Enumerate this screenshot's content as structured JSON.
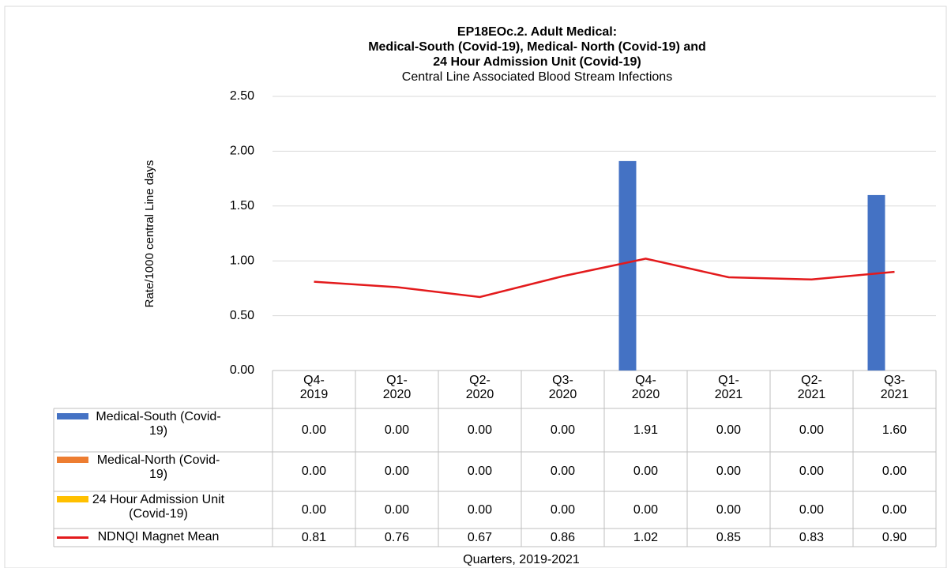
{
  "chart_data": {
    "type": "bar",
    "title": [
      "EP18EOc.2. Adult Medical:",
      "Medical-South (Covid-19), Medical- North (Covid-19) and",
      "24 Hour Admission Unit (Covid-19)"
    ],
    "subtitle": "Central Line Associated Blood Stream Infections",
    "y_label": "Rate/1000 central Line days",
    "x_label": "Quarters, 2019-2021",
    "categories": [
      "Q4-2019",
      "Q1-2020",
      "Q2-2020",
      "Q3-2020",
      "Q4-2020",
      "Q1-2021",
      "Q2-2021",
      "Q3-2021"
    ],
    "series": [
      {
        "name": "Medical-South (Covid-19)",
        "type": "bar",
        "color": "#4472c4",
        "values": [
          0,
          0,
          0,
          0,
          1.91,
          0,
          0,
          1.6
        ],
        "value_labels": [
          "0.00",
          "0.00",
          "0.00",
          "0.00",
          "1.91",
          "0.00",
          "0.00",
          "1.60"
        ]
      },
      {
        "name": "Medical-North (Covid-19)",
        "type": "bar",
        "color": "#ed7d31",
        "values": [
          0,
          0,
          0,
          0,
          0,
          0,
          0,
          0
        ],
        "value_labels": [
          "0.00",
          "0.00",
          "0.00",
          "0.00",
          "0.00",
          "0.00",
          "0.00",
          "0.00"
        ]
      },
      {
        "name": "24 Hour Admission Unit (Covid-19)",
        "type": "bar",
        "color": "#ffc000",
        "values": [
          0,
          0,
          0,
          0,
          0,
          0,
          0,
          0
        ],
        "value_labels": [
          "0.00",
          "0.00",
          "0.00",
          "0.00",
          "0.00",
          "0.00",
          "0.00",
          "0.00"
        ]
      },
      {
        "name": "NDNQI Magnet Mean",
        "type": "line",
        "color": "#e31a1c",
        "values": [
          0.81,
          0.76,
          0.67,
          0.86,
          1.02,
          0.85,
          0.83,
          0.9
        ],
        "value_labels": [
          "0.81",
          "0.76",
          "0.67",
          "0.86",
          "1.02",
          "0.85",
          "0.83",
          "0.90"
        ]
      }
    ],
    "ylim": [
      0,
      2.5
    ],
    "yticks": [
      {
        "value": 0,
        "label": "0.00"
      },
      {
        "value": 0.5,
        "label": "0.50"
      },
      {
        "value": 1,
        "label": "1.00"
      },
      {
        "value": 1.5,
        "label": "1.50"
      },
      {
        "value": 2,
        "label": "2.00"
      },
      {
        "value": 2.5,
        "label": "2.50"
      }
    ],
    "grid": true
  }
}
